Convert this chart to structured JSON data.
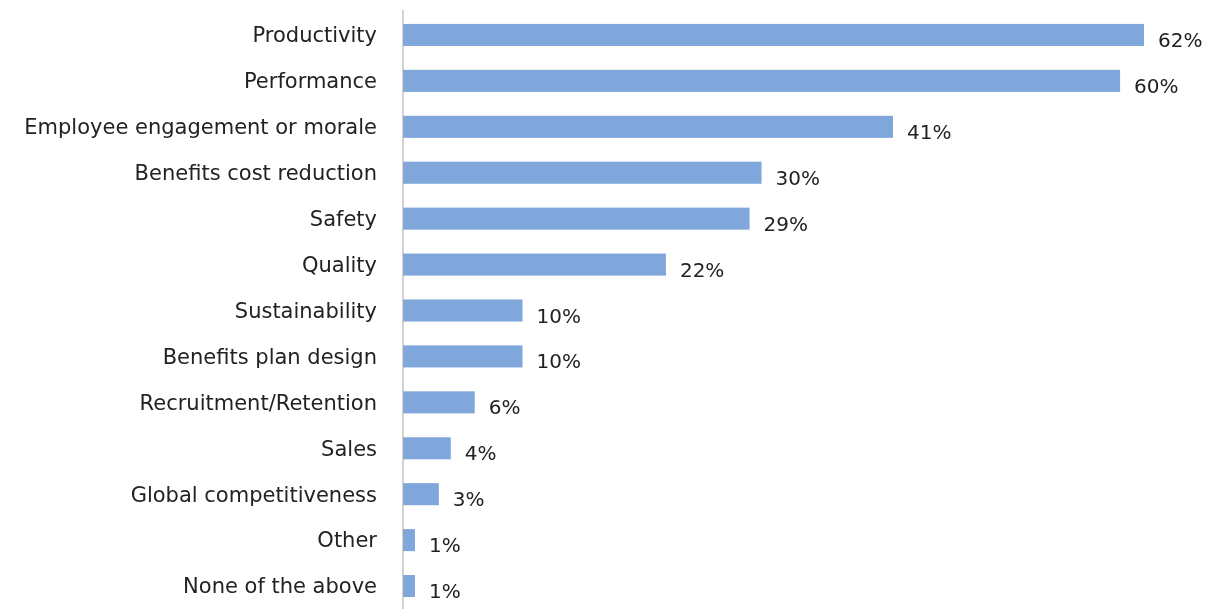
{
  "chart_data": {
    "type": "bar",
    "orientation": "horizontal",
    "categories": [
      "Productivity",
      "Performance",
      "Employee engagement or morale",
      "Benefits cost reduction",
      "Safety",
      "Quality",
      "Sustainability",
      "Benefits plan design",
      "Recruitment/Retention",
      "Sales",
      "Global competitiveness",
      "Other",
      "None of the above"
    ],
    "values": [
      62,
      60,
      41,
      30,
      29,
      22,
      10,
      10,
      6,
      4,
      3,
      1,
      1
    ],
    "value_labels": [
      "62%",
      "60%",
      "41%",
      "30%",
      "29%",
      "22%",
      "10%",
      "10%",
      "6%",
      "4%",
      "3%",
      "1%",
      "1%"
    ],
    "color": "#7fa7db"
  }
}
